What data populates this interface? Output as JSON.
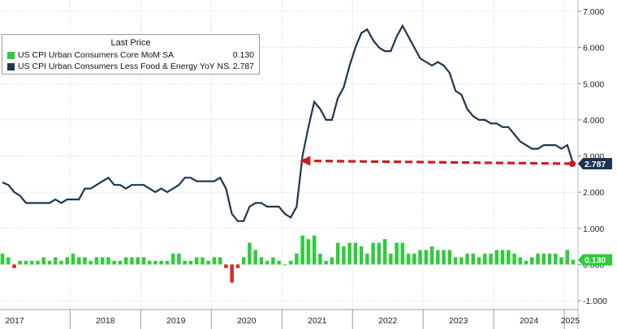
{
  "chart_data": {
    "type": "line",
    "legend_title": "Last Price",
    "legend_placement": "top-left",
    "grid": true,
    "series": [
      {
        "name": "US CPI Urban Consumers Core MoM SA",
        "last_value": "0.130",
        "style": "bar",
        "color": "#2ecc3a",
        "x": [
          "2017-01",
          "2017-02",
          "2017-03",
          "2017-04",
          "2017-05",
          "2017-06",
          "2017-07",
          "2017-08",
          "2017-09",
          "2017-10",
          "2017-11",
          "2017-12",
          "2018-01",
          "2018-02",
          "2018-03",
          "2018-04",
          "2018-05",
          "2018-06",
          "2018-07",
          "2018-08",
          "2018-09",
          "2018-10",
          "2018-11",
          "2018-12",
          "2019-01",
          "2019-02",
          "2019-03",
          "2019-04",
          "2019-05",
          "2019-06",
          "2019-07",
          "2019-08",
          "2019-09",
          "2019-10",
          "2019-11",
          "2019-12",
          "2020-01",
          "2020-02",
          "2020-03",
          "2020-04",
          "2020-05",
          "2020-06",
          "2020-07",
          "2020-08",
          "2020-09",
          "2020-10",
          "2020-11",
          "2020-12",
          "2021-01",
          "2021-02",
          "2021-03",
          "2021-04",
          "2021-05",
          "2021-06",
          "2021-07",
          "2021-08",
          "2021-09",
          "2021-10",
          "2021-11",
          "2021-12",
          "2022-01",
          "2022-02",
          "2022-03",
          "2022-04",
          "2022-05",
          "2022-06",
          "2022-07",
          "2022-08",
          "2022-09",
          "2022-10",
          "2022-11",
          "2022-12",
          "2023-01",
          "2023-02",
          "2023-03",
          "2023-04",
          "2023-05",
          "2023-06",
          "2023-07",
          "2023-08",
          "2023-09",
          "2023-10",
          "2023-11",
          "2023-12",
          "2024-01",
          "2024-02",
          "2024-03",
          "2024-04",
          "2024-05",
          "2024-06",
          "2024-07",
          "2024-08",
          "2024-09",
          "2024-10",
          "2024-11",
          "2024-12",
          "2025-01",
          "2025-02"
        ],
        "values": [
          0.3,
          0.2,
          -0.1,
          0.1,
          0.1,
          0.1,
          0.1,
          0.2,
          0.1,
          0.2,
          0.1,
          0.2,
          0.3,
          0.2,
          0.2,
          0.1,
          0.2,
          0.2,
          0.2,
          0.1,
          0.1,
          0.2,
          0.2,
          0.2,
          0.2,
          0.1,
          0.1,
          0.1,
          0.1,
          0.3,
          0.3,
          0.1,
          0.1,
          0.2,
          0.2,
          0.1,
          0.2,
          0.2,
          -0.1,
          -0.5,
          -0.1,
          0.2,
          0.6,
          0.4,
          0.2,
          0.1,
          0.2,
          0.1,
          0.0,
          0.1,
          0.3,
          0.8,
          0.7,
          0.8,
          0.3,
          0.1,
          0.2,
          0.6,
          0.5,
          0.6,
          0.6,
          0.5,
          0.3,
          0.6,
          0.6,
          0.7,
          0.3,
          0.6,
          0.6,
          0.3,
          0.3,
          0.4,
          0.4,
          0.5,
          0.4,
          0.4,
          0.4,
          0.2,
          0.2,
          0.3,
          0.3,
          0.2,
          0.3,
          0.3,
          0.4,
          0.4,
          0.4,
          0.3,
          0.2,
          0.1,
          0.2,
          0.3,
          0.3,
          0.3,
          0.3,
          0.2,
          0.4,
          0.13
        ]
      },
      {
        "name": "US CPI Urban Consumers Less Food & Energy YoY NSA",
        "last_value": "2.787",
        "style": "line",
        "color": "#1e3552",
        "x": [
          "2017-01",
          "2017-02",
          "2017-03",
          "2017-04",
          "2017-05",
          "2017-06",
          "2017-07",
          "2017-08",
          "2017-09",
          "2017-10",
          "2017-11",
          "2017-12",
          "2018-01",
          "2018-02",
          "2018-03",
          "2018-04",
          "2018-05",
          "2018-06",
          "2018-07",
          "2018-08",
          "2018-09",
          "2018-10",
          "2018-11",
          "2018-12",
          "2019-01",
          "2019-02",
          "2019-03",
          "2019-04",
          "2019-05",
          "2019-06",
          "2019-07",
          "2019-08",
          "2019-09",
          "2019-10",
          "2019-11",
          "2019-12",
          "2020-01",
          "2020-02",
          "2020-03",
          "2020-04",
          "2020-05",
          "2020-06",
          "2020-07",
          "2020-08",
          "2020-09",
          "2020-10",
          "2020-11",
          "2020-12",
          "2021-01",
          "2021-02",
          "2021-03",
          "2021-04",
          "2021-05",
          "2021-06",
          "2021-07",
          "2021-08",
          "2021-09",
          "2021-10",
          "2021-11",
          "2021-12",
          "2022-01",
          "2022-02",
          "2022-03",
          "2022-04",
          "2022-05",
          "2022-06",
          "2022-07",
          "2022-08",
          "2022-09",
          "2022-10",
          "2022-11",
          "2022-12",
          "2023-01",
          "2023-02",
          "2023-03",
          "2023-04",
          "2023-05",
          "2023-06",
          "2023-07",
          "2023-08",
          "2023-09",
          "2023-10",
          "2023-11",
          "2023-12",
          "2024-01",
          "2024-02",
          "2024-03",
          "2024-04",
          "2024-05",
          "2024-06",
          "2024-07",
          "2024-08",
          "2024-09",
          "2024-10",
          "2024-11",
          "2024-12",
          "2025-01",
          "2025-02"
        ],
        "values": [
          2.27,
          2.2,
          2.0,
          1.9,
          1.7,
          1.7,
          1.7,
          1.7,
          1.7,
          1.8,
          1.7,
          1.8,
          1.8,
          1.8,
          2.1,
          2.1,
          2.2,
          2.3,
          2.4,
          2.2,
          2.2,
          2.1,
          2.2,
          2.2,
          2.2,
          2.1,
          2.0,
          2.1,
          2.0,
          2.1,
          2.2,
          2.4,
          2.4,
          2.3,
          2.3,
          2.3,
          2.3,
          2.4,
          2.1,
          1.4,
          1.2,
          1.2,
          1.6,
          1.7,
          1.7,
          1.6,
          1.6,
          1.6,
          1.4,
          1.3,
          1.6,
          3.0,
          3.8,
          4.5,
          4.3,
          4.0,
          4.0,
          4.6,
          4.9,
          5.5,
          6.0,
          6.4,
          6.5,
          6.2,
          6.0,
          5.9,
          5.9,
          6.3,
          6.6,
          6.3,
          6.0,
          5.7,
          5.6,
          5.5,
          5.6,
          5.5,
          5.3,
          4.8,
          4.7,
          4.3,
          4.1,
          4.0,
          4.0,
          3.9,
          3.9,
          3.8,
          3.8,
          3.6,
          3.4,
          3.3,
          3.2,
          3.2,
          3.3,
          3.3,
          3.3,
          3.2,
          3.3,
          2.787
        ]
      }
    ],
    "x_labels": [
      "2017",
      "2018",
      "2019",
      "2020",
      "2021",
      "2022",
      "2023",
      "2024",
      "2025"
    ],
    "y_ticks": [
      "7.000",
      "6.000",
      "5.000",
      "4.000",
      "3.000",
      "2.000",
      "1.000",
      "0.000",
      "-1.000"
    ],
    "ylim": [
      -1.1,
      7.3
    ],
    "annotation": {
      "type": "dashed-arrow",
      "color": "#cc1d1d",
      "from_x": "2025-02",
      "to_x": "2021-03",
      "y": 2.787
    },
    "right_badges": [
      {
        "value": "2.787",
        "color": "#1e3552"
      },
      {
        "value": "0.130",
        "color": "#2ecc3a"
      }
    ]
  }
}
